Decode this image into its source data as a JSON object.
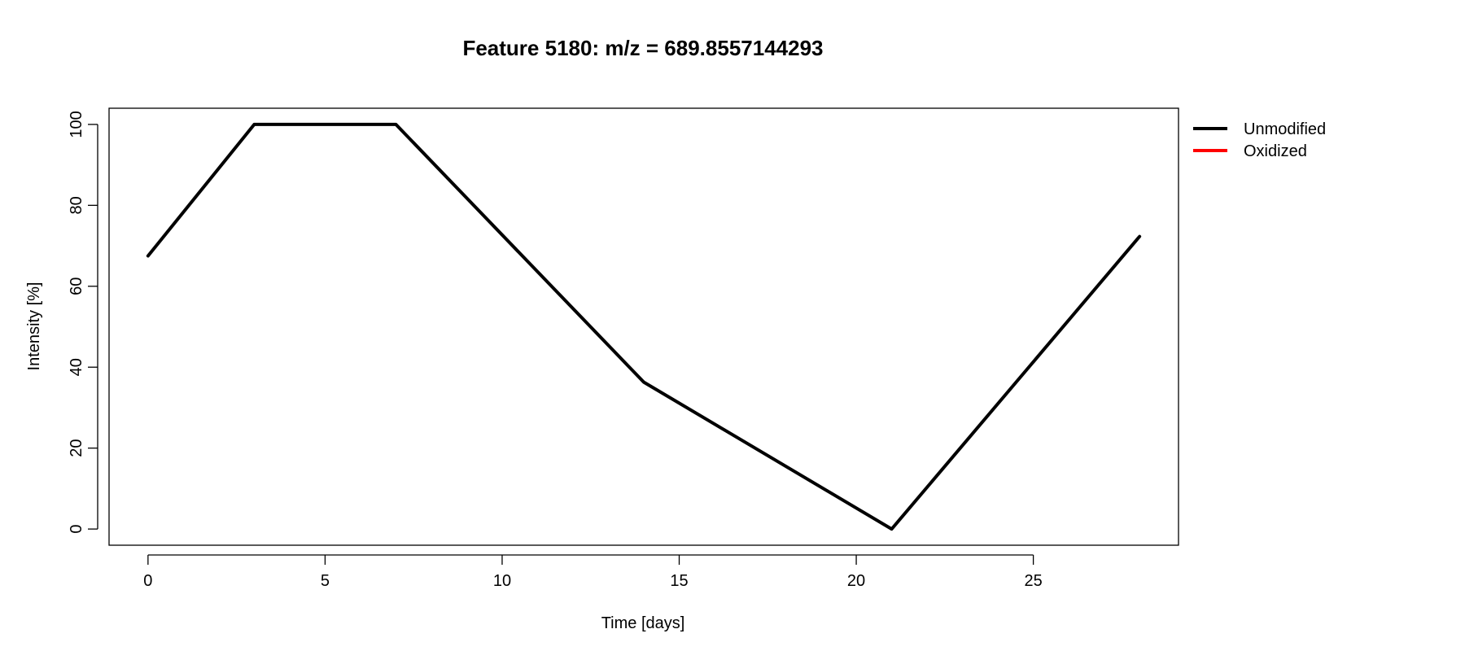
{
  "chart_data": {
    "type": "line",
    "title": "Feature 5180: m/z = 689.8557144293",
    "xlabel": "Time [days]",
    "ylabel": "Intensity [%]",
    "xlim": [
      -1.1,
      29.1
    ],
    "ylim": [
      -4,
      104
    ],
    "x_ticks": [
      0,
      5,
      10,
      15,
      20,
      25
    ],
    "y_ticks": [
      0,
      20,
      40,
      60,
      80,
      100
    ],
    "grid": false,
    "legend_position": "outside-top-right",
    "legend": [
      {
        "name": "Unmodified",
        "color": "#000000"
      },
      {
        "name": "Oxidized",
        "color": "#ff0000"
      }
    ],
    "series": [
      {
        "name": "Unmodified",
        "color": "#000000",
        "x": [
          0,
          3,
          7,
          14,
          21,
          28
        ],
        "y": [
          67.5,
          100,
          100,
          36.3,
          0,
          72.3
        ]
      }
    ]
  }
}
